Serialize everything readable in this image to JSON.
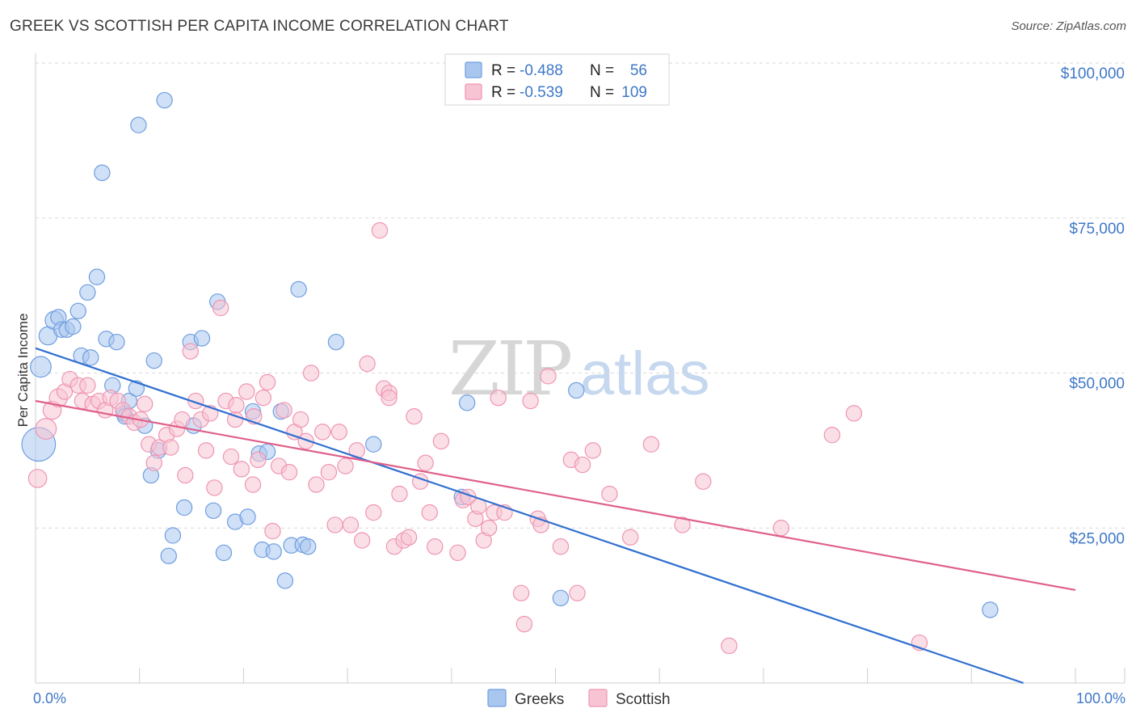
{
  "title": "GREEK VS SCOTTISH PER CAPITA INCOME CORRELATION CHART",
  "source": "Source: ZipAtlas.com",
  "watermark": {
    "part1": "ZIP",
    "part2": "atlas"
  },
  "chart_data": {
    "type": "scatter",
    "xlabel": "",
    "ylabel": "Per Capita Income",
    "xlim": [
      0,
      100
    ],
    "ylim": [
      0,
      100000
    ],
    "x_tick_labels": {
      "min": "0.0%",
      "max": "100.0%"
    },
    "y_ticks": [
      {
        "value": 25000,
        "label": "$25,000"
      },
      {
        "value": 50000,
        "label": "$50,000"
      },
      {
        "value": 75000,
        "label": "$75,000"
      },
      {
        "value": 100000,
        "label": "$100,000"
      }
    ],
    "grid": true,
    "legend_placement": "top-center",
    "series": [
      {
        "name": "Greeks",
        "color": "#6f9ee0",
        "fill": "#a9c6ef",
        "line_color": "#2f6fd0",
        "R": "-0.488",
        "N": "56",
        "trend": {
          "x": [
            0,
            95
          ],
          "y": [
            54000,
            0
          ]
        },
        "points": [
          [
            0.3,
            38500,
            26
          ],
          [
            0.5,
            51000,
            16
          ],
          [
            1.2,
            56000,
            14
          ],
          [
            1.8,
            58500,
            14
          ],
          [
            2.2,
            59000,
            12
          ],
          [
            2.5,
            57000,
            12
          ],
          [
            3.0,
            57000,
            12
          ],
          [
            3.6,
            57500,
            12
          ],
          [
            4.1,
            60000,
            12
          ],
          [
            4.4,
            52800,
            12
          ],
          [
            5.0,
            63000,
            12
          ],
          [
            5.3,
            52500,
            12
          ],
          [
            5.9,
            65500,
            12
          ],
          [
            6.8,
            55500,
            12
          ],
          [
            7.4,
            48000,
            12
          ],
          [
            7.8,
            55000,
            12
          ],
          [
            8.5,
            43500,
            12
          ],
          [
            8.6,
            43000,
            12
          ],
          [
            9.0,
            45500,
            12
          ],
          [
            9.7,
            47500,
            12
          ],
          [
            10.5,
            41500,
            12
          ],
          [
            11.1,
            33500,
            12
          ],
          [
            11.4,
            52000,
            12
          ],
          [
            11.8,
            37500,
            12
          ],
          [
            9.9,
            90000,
            12
          ],
          [
            12.4,
            94000,
            12
          ],
          [
            12.8,
            20500,
            12
          ],
          [
            13.2,
            23800,
            12
          ],
          [
            14.3,
            28300,
            12
          ],
          [
            15.2,
            41500,
            12
          ],
          [
            14.9,
            55000,
            12
          ],
          [
            16.0,
            55600,
            12
          ],
          [
            17.1,
            27800,
            12
          ],
          [
            17.5,
            61500,
            12
          ],
          [
            18.1,
            21000,
            12
          ],
          [
            19.2,
            26000,
            12
          ],
          [
            20.4,
            26800,
            12
          ],
          [
            20.9,
            43800,
            12
          ],
          [
            21.5,
            37000,
            12
          ],
          [
            21.8,
            21500,
            12
          ],
          [
            22.3,
            37300,
            12
          ],
          [
            22.9,
            21200,
            12
          ],
          [
            23.6,
            43800,
            12
          ],
          [
            24.0,
            16500,
            12
          ],
          [
            24.6,
            22200,
            12
          ],
          [
            25.3,
            63500,
            12
          ],
          [
            25.7,
            22300,
            12
          ],
          [
            26.2,
            22000,
            12
          ],
          [
            28.9,
            55000,
            12
          ],
          [
            32.5,
            38500,
            12
          ],
          [
            41.5,
            45200,
            12
          ],
          [
            41.0,
            30000,
            12
          ],
          [
            50.5,
            13700,
            12
          ],
          [
            52.0,
            47200,
            12
          ],
          [
            91.8,
            11800,
            12
          ],
          [
            6.4,
            82300,
            12
          ]
        ]
      },
      {
        "name": "Scottish",
        "color": "#ef95b2",
        "fill": "#f7c4d4",
        "line_color": "#e0608b",
        "R": "-0.539",
        "N": "109",
        "trend": {
          "x": [
            0,
            100
          ],
          "y": [
            45500,
            15000
          ]
        },
        "points": [
          [
            0.2,
            33000,
            14
          ],
          [
            1.0,
            41000,
            16
          ],
          [
            1.6,
            44000,
            14
          ],
          [
            2.2,
            46000,
            14
          ],
          [
            2.8,
            47000,
            12
          ],
          [
            3.3,
            49000,
            12
          ],
          [
            4.1,
            48000,
            12
          ],
          [
            4.5,
            45500,
            12
          ],
          [
            5.0,
            48000,
            12
          ],
          [
            5.5,
            45000,
            12
          ],
          [
            6.1,
            45500,
            12
          ],
          [
            6.7,
            44000,
            12
          ],
          [
            7.2,
            46000,
            12
          ],
          [
            7.9,
            45500,
            12
          ],
          [
            8.4,
            44000,
            12
          ],
          [
            9.0,
            43000,
            12
          ],
          [
            9.5,
            42000,
            12
          ],
          [
            10.1,
            42500,
            12
          ],
          [
            10.5,
            45000,
            12
          ],
          [
            10.9,
            38500,
            12
          ],
          [
            11.4,
            35500,
            12
          ],
          [
            11.9,
            38000,
            12
          ],
          [
            12.6,
            40000,
            12
          ],
          [
            13.0,
            38000,
            12
          ],
          [
            13.6,
            41000,
            12
          ],
          [
            14.1,
            42500,
            12
          ],
          [
            14.4,
            33500,
            12
          ],
          [
            14.9,
            53500,
            12
          ],
          [
            15.4,
            45500,
            12
          ],
          [
            15.9,
            42500,
            12
          ],
          [
            16.4,
            37500,
            12
          ],
          [
            16.8,
            43500,
            12
          ],
          [
            17.2,
            31500,
            12
          ],
          [
            17.8,
            60500,
            12
          ],
          [
            18.3,
            45500,
            12
          ],
          [
            18.8,
            36500,
            12
          ],
          [
            19.2,
            42500,
            12
          ],
          [
            19.8,
            34500,
            12
          ],
          [
            20.3,
            47000,
            12
          ],
          [
            20.9,
            32000,
            12
          ],
          [
            21.4,
            36000,
            12
          ],
          [
            21.9,
            46000,
            12
          ],
          [
            22.3,
            48500,
            12
          ],
          [
            22.8,
            24500,
            12
          ],
          [
            23.4,
            35000,
            12
          ],
          [
            23.9,
            44000,
            12
          ],
          [
            24.4,
            34000,
            12
          ],
          [
            24.9,
            40500,
            12
          ],
          [
            25.5,
            42500,
            12
          ],
          [
            26.0,
            39000,
            12
          ],
          [
            26.5,
            50000,
            12
          ],
          [
            27.0,
            32000,
            12
          ],
          [
            27.6,
            40500,
            12
          ],
          [
            28.2,
            34000,
            12
          ],
          [
            28.8,
            25500,
            12
          ],
          [
            29.2,
            40500,
            12
          ],
          [
            29.8,
            35000,
            12
          ],
          [
            30.3,
            25500,
            12
          ],
          [
            30.9,
            37500,
            12
          ],
          [
            31.4,
            23000,
            12
          ],
          [
            31.9,
            51500,
            12
          ],
          [
            32.5,
            27500,
            12
          ],
          [
            33.1,
            73000,
            12
          ],
          [
            33.5,
            47500,
            12
          ],
          [
            34.0,
            46800,
            12
          ],
          [
            34.5,
            22000,
            12
          ],
          [
            35.0,
            30500,
            12
          ],
          [
            35.4,
            23000,
            12
          ],
          [
            35.9,
            23500,
            12
          ],
          [
            36.4,
            43000,
            12
          ],
          [
            37.0,
            32500,
            12
          ],
          [
            37.5,
            35500,
            12
          ],
          [
            37.9,
            27500,
            12
          ],
          [
            38.4,
            22000,
            12
          ],
          [
            39.0,
            39000,
            12
          ],
          [
            41.1,
            29500,
            12
          ],
          [
            41.6,
            30000,
            12
          ],
          [
            42.3,
            26500,
            12
          ],
          [
            42.6,
            28500,
            12
          ],
          [
            43.1,
            23000,
            12
          ],
          [
            43.6,
            25000,
            12
          ],
          [
            44.1,
            27500,
            12
          ],
          [
            44.5,
            46000,
            12
          ],
          [
            45.1,
            27500,
            12
          ],
          [
            47.6,
            45500,
            12
          ],
          [
            48.3,
            26500,
            12
          ],
          [
            48.6,
            25500,
            12
          ],
          [
            49.3,
            49500,
            12
          ],
          [
            50.5,
            22000,
            12
          ],
          [
            51.5,
            36000,
            12
          ],
          [
            52.1,
            14500,
            12
          ],
          [
            52.6,
            35200,
            12
          ],
          [
            53.6,
            37500,
            12
          ],
          [
            55.2,
            30500,
            12
          ],
          [
            57.2,
            23500,
            12
          ],
          [
            59.2,
            38500,
            12
          ],
          [
            62.2,
            25500,
            12
          ],
          [
            64.2,
            32500,
            12
          ],
          [
            66.7,
            6000,
            12
          ],
          [
            71.7,
            25000,
            12
          ],
          [
            76.6,
            40000,
            12
          ],
          [
            78.7,
            43500,
            12
          ],
          [
            85.0,
            6500,
            12
          ],
          [
            47.0,
            9500,
            12
          ],
          [
            46.7,
            14500,
            12
          ],
          [
            40.6,
            21000,
            12
          ],
          [
            34.0,
            46000,
            12
          ],
          [
            19.3,
            44800,
            12
          ],
          [
            21.0,
            43000,
            12
          ]
        ]
      }
    ]
  }
}
